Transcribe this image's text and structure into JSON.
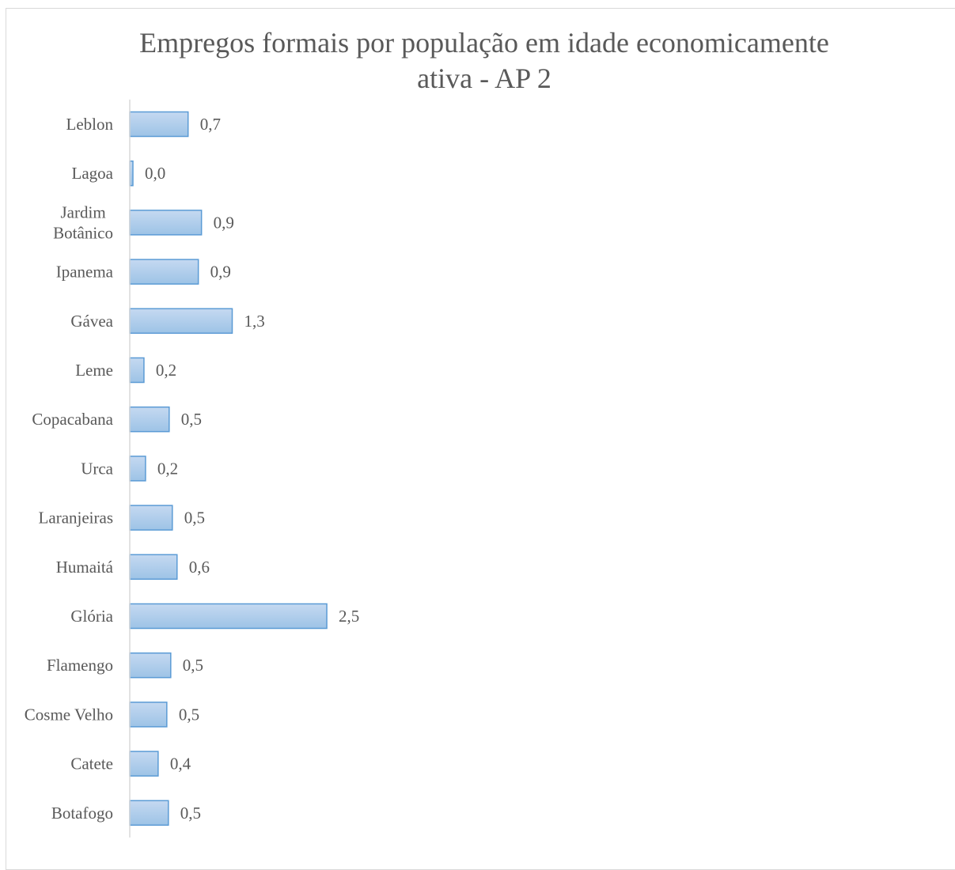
{
  "chart_data": {
    "type": "bar",
    "orientation": "horizontal",
    "title": "Empregos formais por população em idade economicamente ativa - AP 2",
    "title_lines": [
      "Empregos formais por população em idade economicamente",
      "ativa - AP 2"
    ],
    "categories": [
      [
        "Leblon"
      ],
      [
        "Lagoa"
      ],
      [
        "Jardim",
        "Botânico"
      ],
      [
        "Ipanema"
      ],
      [
        "Gávea"
      ],
      [
        "Leme"
      ],
      [
        "Copacabana"
      ],
      [
        "Urca"
      ],
      [
        "Laranjeiras"
      ],
      [
        "Humaitá"
      ],
      [
        "Glória"
      ],
      [
        "Flamengo"
      ],
      [
        "Cosme Velho"
      ],
      [
        "Catete"
      ],
      [
        "Botafogo"
      ]
    ],
    "values": [
      0.74,
      0.04,
      0.91,
      0.87,
      1.3,
      0.18,
      0.5,
      0.2,
      0.54,
      0.6,
      2.5,
      0.52,
      0.47,
      0.36,
      0.49
    ],
    "value_labels": [
      "0,7",
      "0,0",
      "0,9",
      "0,9",
      "1,3",
      "0,2",
      "0,5",
      "0,2",
      "0,5",
      "0,6",
      "2,5",
      "0,5",
      "0,5",
      "0,4",
      "0,5"
    ],
    "xlim": [
      0,
      10.4
    ],
    "grid": false,
    "legend": "none",
    "colors": {
      "bar_fill_top": "#c5d9f1",
      "bar_fill_bottom": "#9dc3e6",
      "bar_stroke": "#5b9bd5",
      "axis": "#d9d9d9",
      "text": "#595959"
    }
  }
}
